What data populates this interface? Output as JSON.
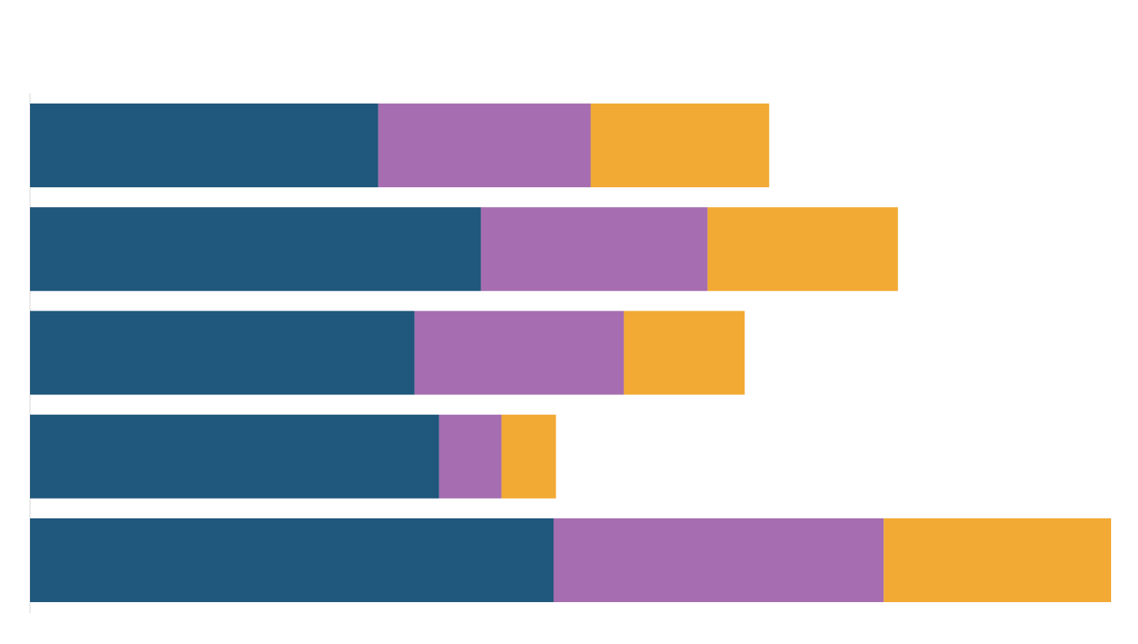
{
  "chart_data": {
    "type": "bar",
    "orientation": "horizontal",
    "stacked": true,
    "categories": [
      "",
      "",
      "",
      "",
      ""
    ],
    "series": [
      {
        "values": [
          44.1,
          57.1,
          48.7,
          51.8,
          66.3
        ],
        "color": "#20577c"
      },
      {
        "values": [
          26.9,
          28.7,
          26.5,
          7.9,
          41.8
        ],
        "color": "#a66eb0"
      },
      {
        "values": [
          22.6,
          24.1,
          15.3,
          6.9,
          28.8
        ],
        "color": "#f2aa34"
      }
    ],
    "xlim": [
      0,
      137
    ],
    "grid": false,
    "legend": "none"
  }
}
